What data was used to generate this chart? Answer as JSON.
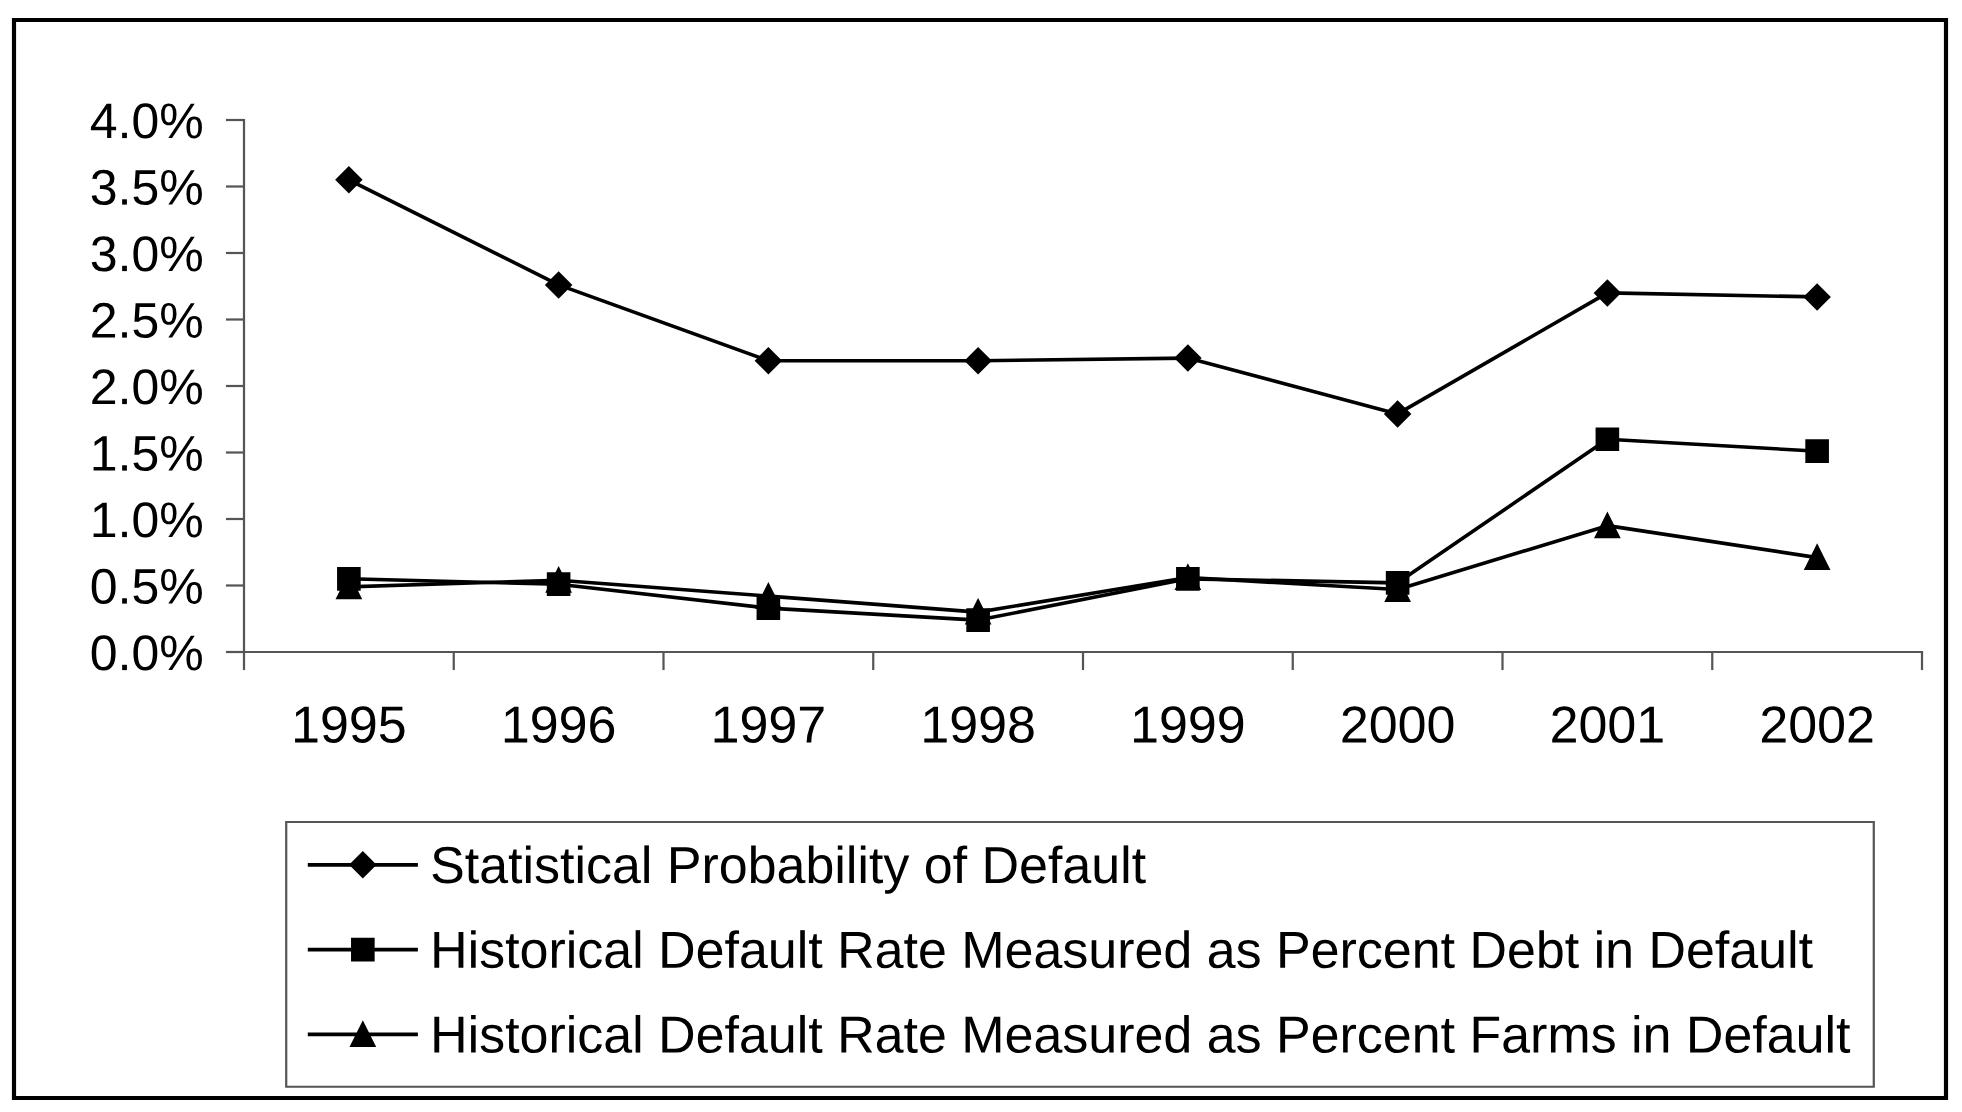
{
  "chart_data": {
    "type": "line",
    "categories": [
      "1995",
      "1996",
      "1997",
      "1998",
      "1999",
      "2000",
      "2001",
      "2002"
    ],
    "series": [
      {
        "name": "Statistical Probability of Default",
        "color": "#000000",
        "marker": "diamond",
        "values": [
          3.55,
          2.76,
          2.19,
          2.19,
          2.21,
          1.79,
          2.7,
          2.67
        ]
      },
      {
        "name": "Historical Default Rate Measured as Percent Debt in Default",
        "color": "#000000",
        "marker": "square",
        "values": [
          0.55,
          0.51,
          0.33,
          0.24,
          0.55,
          0.52,
          1.6,
          1.51
        ]
      },
      {
        "name": "Historical Default Rate Measured as Percent Farms in Default",
        "color": "#000000",
        "marker": "triangle",
        "values": [
          0.49,
          0.54,
          0.42,
          0.3,
          0.56,
          0.47,
          0.95,
          0.71
        ]
      }
    ],
    "ylim": [
      0,
      4
    ],
    "yticks": [
      {
        "value": 0,
        "label": "0.0%"
      },
      {
        "value": 0.5,
        "label": "0.5%"
      },
      {
        "value": 1,
        "label": "1.0%"
      },
      {
        "value": 1.5,
        "label": "1.5%"
      },
      {
        "value": 2,
        "label": "2.0%"
      },
      {
        "value": 2.5,
        "label": "2.5%"
      },
      {
        "value": 3,
        "label": "3.0%"
      },
      {
        "value": 3.5,
        "label": "3.5%"
      },
      {
        "value": 4,
        "label": "4.0%"
      }
    ],
    "grid": false,
    "legend": "bottom",
    "line_style": "solid"
  }
}
